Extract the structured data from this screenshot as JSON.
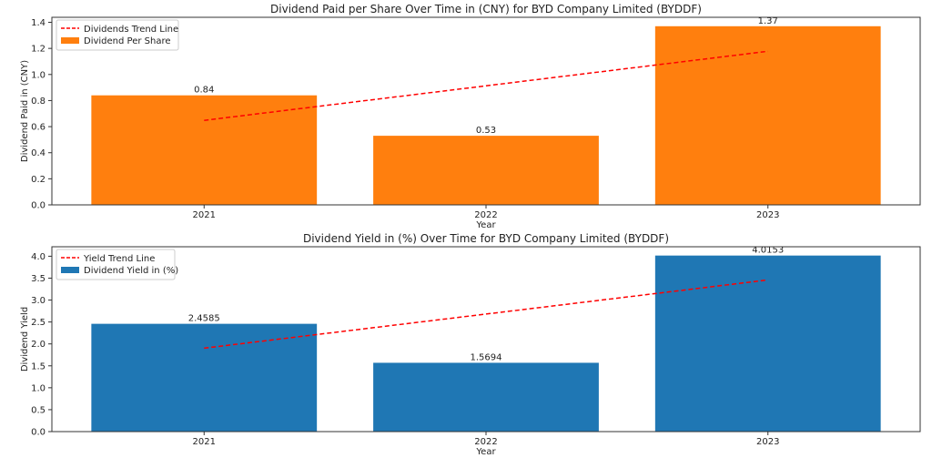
{
  "chart_data": [
    {
      "type": "bar",
      "title": "Dividend Paid per Share Over Time in (CNY) for BYD Company Limited (BYDDF)",
      "xlabel": "Year",
      "ylabel": "Dividend Paid in (CNY)",
      "categories": [
        "2021",
        "2022",
        "2023"
      ],
      "values": [
        0.84,
        0.53,
        1.37
      ],
      "value_labels": [
        "0.84",
        "0.53",
        "1.37"
      ],
      "bar_color": "#ff7f0e",
      "trend": {
        "name": "Dividends Trend Line",
        "values": [
          0.648,
          0.913,
          1.178
        ],
        "color": "#ff0000"
      },
      "legend": [
        "Dividends Trend Line",
        "Dividend Per Share"
      ],
      "legend_position": "upper-left",
      "ylim": [
        0,
        1.4385
      ],
      "yticks": [
        0.0,
        0.2,
        0.4,
        0.6,
        0.8,
        1.0,
        1.2,
        1.4
      ],
      "ytick_labels": [
        "0.0",
        "0.2",
        "0.4",
        "0.6",
        "0.8",
        "1.0",
        "1.2",
        "1.4"
      ]
    },
    {
      "type": "bar",
      "title": "Dividend Yield in (%) Over Time for BYD Company Limited (BYDDF)",
      "xlabel": "Year",
      "ylabel": "Dividend Yield",
      "categories": [
        "2021",
        "2022",
        "2023"
      ],
      "values": [
        2.4585,
        1.5694,
        4.0153
      ],
      "value_labels": [
        "2.4585",
        "1.5694",
        "4.0153"
      ],
      "bar_color": "#1f77b4",
      "trend": {
        "name": "Yield Trend Line",
        "values": [
          1.9027,
          2.6811,
          3.4595
        ],
        "color": "#ff0000"
      },
      "legend": [
        "Yield Trend Line",
        "Dividend Yield in (%)"
      ],
      "legend_position": "upper-left",
      "ylim": [
        0,
        4.216
      ],
      "yticks": [
        0.0,
        0.5,
        1.0,
        1.5,
        2.0,
        2.5,
        3.0,
        3.5,
        4.0
      ],
      "ytick_labels": [
        "0.0",
        "0.5",
        "1.0",
        "1.5",
        "2.0",
        "2.5",
        "3.0",
        "3.5",
        "4.0"
      ]
    }
  ]
}
